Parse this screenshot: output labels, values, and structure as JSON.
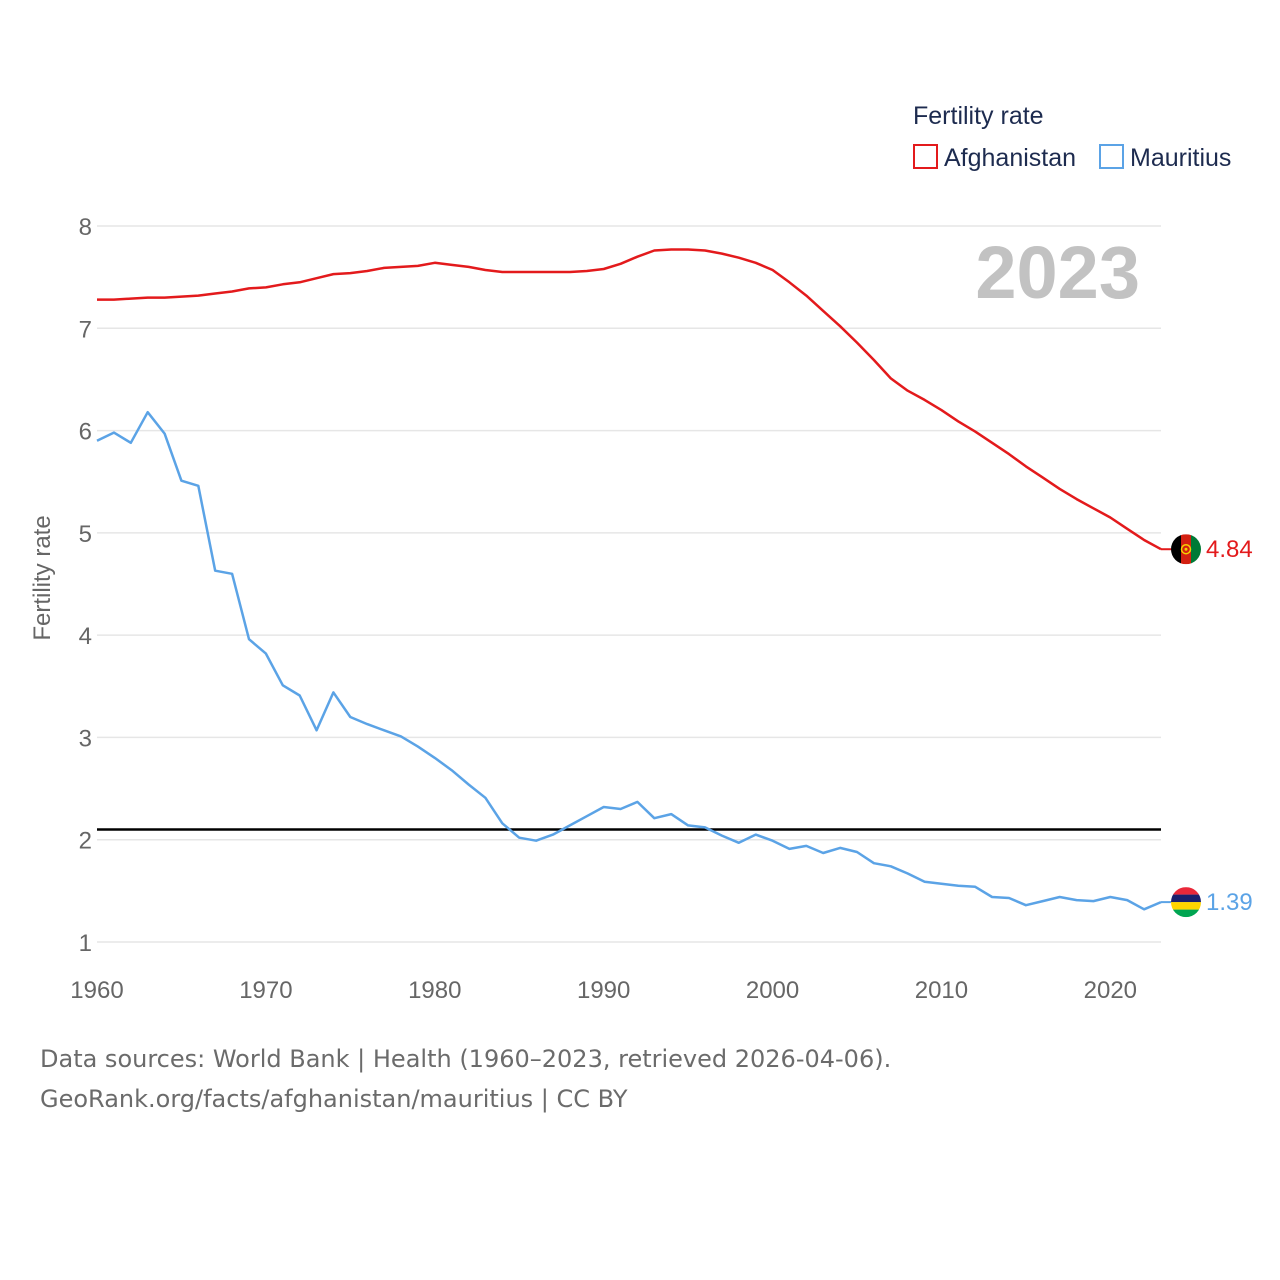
{
  "footer": {
    "sources": "Data sources: World Bank | Health (1960–2023, retrieved 2026-04-06).",
    "credit": "GeoRank.org/facts/afghanistan/mauritius | CC BY"
  },
  "chart_data": {
    "type": "line",
    "title": "",
    "legend_title": "Fertility rate",
    "legend_position": "top-right",
    "year_label": "2023",
    "xlabel": "",
    "ylabel": "Fertility rate",
    "xlim": [
      1960,
      2023
    ],
    "ylim": [
      1,
      8
    ],
    "x_ticks": [
      1960,
      1970,
      1980,
      1990,
      2000,
      2010,
      2020
    ],
    "y_ticks": [
      1,
      2,
      3,
      4,
      5,
      6,
      7,
      8
    ],
    "grid": true,
    "reference_line": {
      "value": 2.1,
      "color": "#000000"
    },
    "x": [
      1960,
      1961,
      1962,
      1963,
      1964,
      1965,
      1966,
      1967,
      1968,
      1969,
      1970,
      1971,
      1972,
      1973,
      1974,
      1975,
      1976,
      1977,
      1978,
      1979,
      1980,
      1981,
      1982,
      1983,
      1984,
      1985,
      1986,
      1987,
      1988,
      1989,
      1990,
      1991,
      1992,
      1993,
      1994,
      1995,
      1996,
      1997,
      1998,
      1999,
      2000,
      2001,
      2002,
      2003,
      2004,
      2005,
      2006,
      2007,
      2008,
      2009,
      2010,
      2011,
      2012,
      2013,
      2014,
      2015,
      2016,
      2017,
      2018,
      2019,
      2020,
      2021,
      2022,
      2023
    ],
    "series": [
      {
        "name": "Afghanistan",
        "color": "#e31a1c",
        "end_label": "4.84",
        "values": [
          7.28,
          7.28,
          7.29,
          7.3,
          7.3,
          7.31,
          7.32,
          7.34,
          7.36,
          7.39,
          7.4,
          7.43,
          7.45,
          7.49,
          7.53,
          7.54,
          7.56,
          7.59,
          7.6,
          7.61,
          7.64,
          7.62,
          7.6,
          7.57,
          7.55,
          7.55,
          7.55,
          7.55,
          7.55,
          7.56,
          7.58,
          7.63,
          7.7,
          7.76,
          7.77,
          7.77,
          7.76,
          7.73,
          7.69,
          7.64,
          7.57,
          7.45,
          7.32,
          7.17,
          7.02,
          6.86,
          6.69,
          6.51,
          6.39,
          6.3,
          6.2,
          6.09,
          5.99,
          5.88,
          5.77,
          5.65,
          5.54,
          5.43,
          5.33,
          5.24,
          5.15,
          5.04,
          4.93,
          4.84
        ]
      },
      {
        "name": "Mauritius",
        "color": "#5ba3e6",
        "end_label": "1.39",
        "values": [
          5.9,
          5.98,
          5.88,
          6.18,
          5.97,
          5.51,
          5.46,
          4.63,
          4.6,
          3.96,
          3.82,
          3.51,
          3.41,
          3.07,
          3.44,
          3.2,
          3.13,
          3.07,
          3.01,
          2.91,
          2.8,
          2.68,
          2.54,
          2.41,
          2.16,
          2.02,
          1.99,
          2.05,
          2.14,
          2.23,
          2.32,
          2.3,
          2.37,
          2.21,
          2.25,
          2.14,
          2.12,
          2.04,
          1.97,
          2.05,
          1.99,
          1.91,
          1.94,
          1.87,
          1.92,
          1.88,
          1.77,
          1.74,
          1.67,
          1.59,
          1.57,
          1.55,
          1.54,
          1.44,
          1.43,
          1.36,
          1.4,
          1.44,
          1.41,
          1.4,
          1.44,
          1.41,
          1.32,
          1.39
        ]
      }
    ]
  }
}
